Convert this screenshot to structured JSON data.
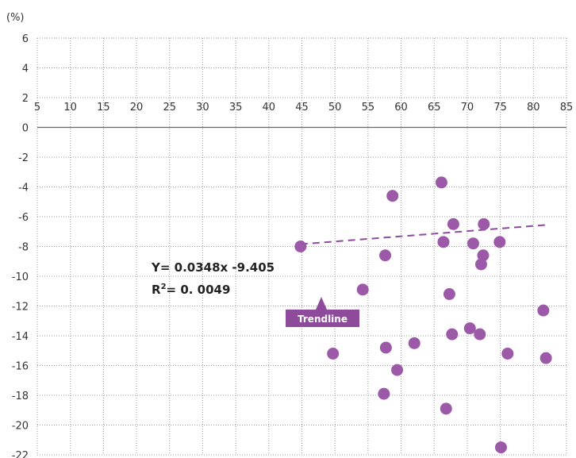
{
  "chart_data": {
    "type": "scatter",
    "title": "",
    "ylabel": "(%)",
    "xlabel": "",
    "xlim": [
      5,
      85
    ],
    "ylim": [
      -22,
      6
    ],
    "x_ticks": [
      5,
      10,
      15,
      20,
      25,
      30,
      35,
      40,
      45,
      50,
      55,
      60,
      65,
      70,
      75,
      80,
      85
    ],
    "y_ticks": [
      6,
      4,
      2,
      0,
      -2,
      -4,
      -6,
      -8,
      -10,
      -12,
      -14,
      -16,
      -18,
      -20,
      -22
    ],
    "grid": true,
    "points": [
      {
        "x": 44.8,
        "y": -8.0
      },
      {
        "x": 49.7,
        "y": -15.2
      },
      {
        "x": 54.2,
        "y": -10.9
      },
      {
        "x": 57.4,
        "y": -17.9
      },
      {
        "x": 57.6,
        "y": -8.6
      },
      {
        "x": 57.7,
        "y": -14.8
      },
      {
        "x": 58.7,
        "y": -4.6
      },
      {
        "x": 59.4,
        "y": -16.3
      },
      {
        "x": 62.0,
        "y": -14.5
      },
      {
        "x": 66.1,
        "y": -3.7
      },
      {
        "x": 66.4,
        "y": -7.7
      },
      {
        "x": 66.8,
        "y": -18.9
      },
      {
        "x": 67.3,
        "y": -11.2
      },
      {
        "x": 67.7,
        "y": -13.9
      },
      {
        "x": 67.9,
        "y": -6.5
      },
      {
        "x": 70.4,
        "y": -13.5
      },
      {
        "x": 70.9,
        "y": -7.8
      },
      {
        "x": 71.9,
        "y": -13.9
      },
      {
        "x": 72.1,
        "y": -9.2
      },
      {
        "x": 72.4,
        "y": -8.6
      },
      {
        "x": 72.5,
        "y": -6.5
      },
      {
        "x": 74.9,
        "y": -7.7
      },
      {
        "x": 75.1,
        "y": -21.5
      },
      {
        "x": 76.1,
        "y": -15.2
      },
      {
        "x": 81.5,
        "y": -12.3
      },
      {
        "x": 81.9,
        "y": -15.5
      }
    ],
    "trendline": {
      "slope": 0.0348,
      "intercept": -9.405,
      "x_range": [
        44.8,
        81.9
      ],
      "equation": "Y= 0.0348x -9.405",
      "r2_prefix": "R",
      "r2_sup": "2",
      "r2_value": "= 0. 0049",
      "label": "Trendline"
    },
    "colors": {
      "point": "#9b59a8",
      "trendline": "#8e4b9c",
      "label_bg": "#8e4b9c",
      "grid": "#9a9a9a",
      "zero_axis": "#666666"
    }
  }
}
